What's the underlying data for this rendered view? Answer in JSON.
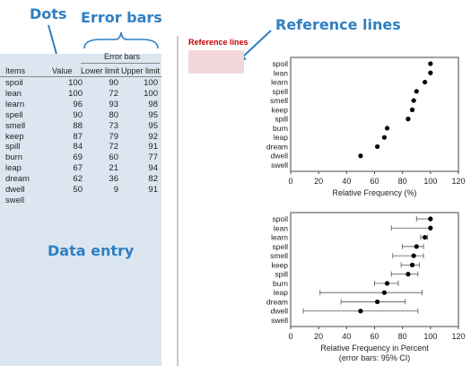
{
  "callouts": {
    "dots": "Dots",
    "error_bars": "Error bars",
    "reference_lines": "Reference lines",
    "data_entry": "Data entry"
  },
  "table": {
    "group_header": "Error bars",
    "columns": [
      "Items",
      "Value",
      "Lower limit",
      "Upper limit"
    ],
    "rows": [
      {
        "item": "spoil",
        "value": "100",
        "lower": "90",
        "upper": "100"
      },
      {
        "item": "lean",
        "value": "100",
        "lower": "72",
        "upper": "100"
      },
      {
        "item": "learn",
        "value": "96",
        "lower": "93",
        "upper": "98"
      },
      {
        "item": "spell",
        "value": "90",
        "lower": "80",
        "upper": "95"
      },
      {
        "item": "smell",
        "value": "88",
        "lower": "73",
        "upper": "95"
      },
      {
        "item": "keep",
        "value": "87",
        "lower": "79",
        "upper": "92"
      },
      {
        "item": "spill",
        "value": "84",
        "lower": "72",
        "upper": "91"
      },
      {
        "item": "burn",
        "value": "69",
        "lower": "60",
        "upper": "77"
      },
      {
        "item": "leap",
        "value": "67",
        "lower": "21",
        "upper": "94"
      },
      {
        "item": "dream",
        "value": "62",
        "lower": "36",
        "upper": "82"
      },
      {
        "item": "dwell",
        "value": "50",
        "lower": "9",
        "upper": "91"
      },
      {
        "item": "swell",
        "value": "",
        "lower": "",
        "upper": ""
      }
    ]
  },
  "reference_lines_label": "Reference lines",
  "chart_data": [
    {
      "type": "scatter",
      "categories": [
        "spoil",
        "lean",
        "learn",
        "spell",
        "smell",
        "keep",
        "spill",
        "burn",
        "leap",
        "dream",
        "dwell",
        "swell"
      ],
      "values": [
        100,
        100,
        96,
        90,
        88,
        87,
        84,
        69,
        67,
        62,
        50,
        null
      ],
      "xlabel": "Relative  Frequency  (%)",
      "xlim": [
        0,
        120
      ],
      "xticks": [
        0,
        20,
        40,
        60,
        80,
        100,
        120
      ]
    },
    {
      "type": "scatter",
      "categories": [
        "spoil",
        "lean",
        "learn",
        "spell",
        "smell",
        "keep",
        "spill",
        "burn",
        "leap",
        "dream",
        "dwell",
        "swell"
      ],
      "values": [
        100,
        100,
        96,
        90,
        88,
        87,
        84,
        69,
        67,
        62,
        50,
        null
      ],
      "lower": [
        90,
        72,
        93,
        80,
        73,
        79,
        72,
        60,
        21,
        36,
        9,
        null
      ],
      "upper": [
        100,
        100,
        98,
        95,
        95,
        92,
        91,
        77,
        94,
        82,
        91,
        null
      ],
      "xlabel": "Relative  Frequency  in Percent",
      "xlabel2": "(error bars: 95% CI)",
      "xlim": [
        0,
        120
      ],
      "xticks": [
        0,
        20,
        40,
        60,
        80,
        100,
        120
      ]
    }
  ]
}
